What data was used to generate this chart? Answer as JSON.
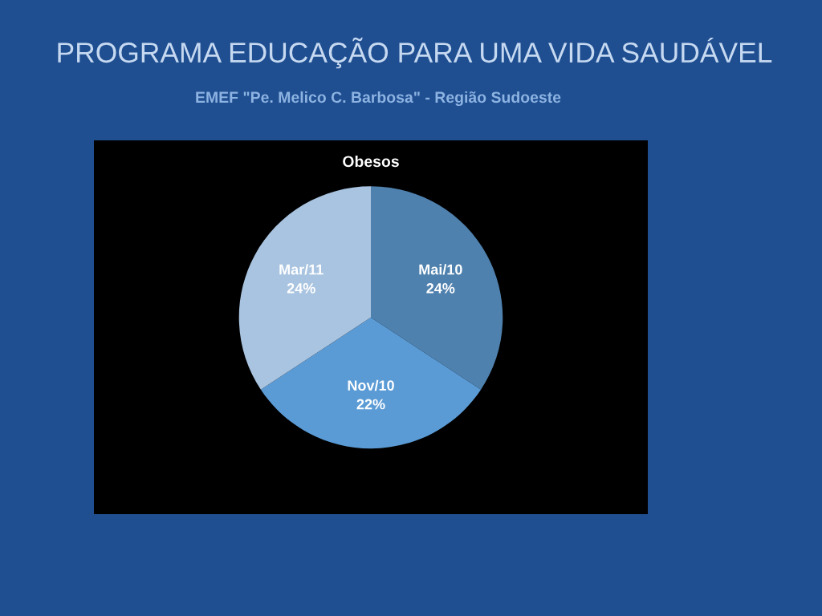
{
  "chart_data": {
    "type": "pie",
    "title": "PROGRAMA EDUCAÇÃO PARA UMA VIDA SAUDÁVEL",
    "subtitle": "EMEF \"Pe. Melico C. Barbosa\" - Região Sudoeste",
    "annotations": [
      "Obesos"
    ],
    "categories": [
      "Mai/10",
      "Nov/10",
      "Mar/11"
    ],
    "values": [
      24,
      22,
      24
    ],
    "colors": [
      "#4f81ae",
      "#5b9bd5",
      "#a9c4e0"
    ],
    "value_labels": [
      "24%",
      "22%",
      "24%"
    ]
  }
}
